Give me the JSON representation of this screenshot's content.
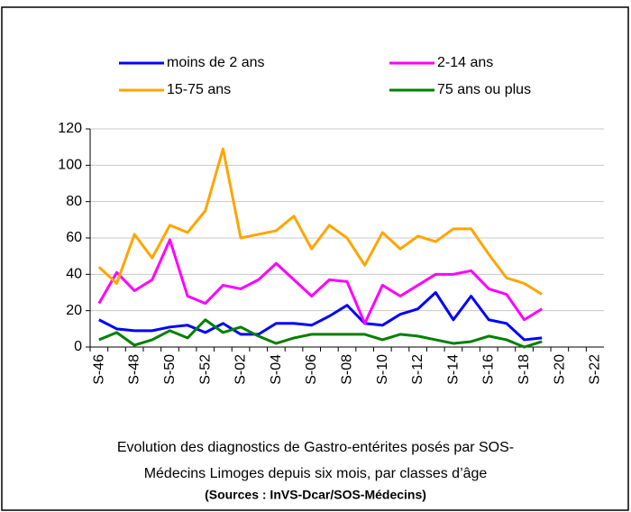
{
  "chart_data": {
    "type": "line",
    "categories": [
      "S-46",
      null,
      "S-48",
      null,
      "S-50",
      null,
      "S-52",
      null,
      "S-02",
      null,
      "S-04",
      null,
      "S-06",
      null,
      "S-08",
      null,
      "S-10",
      null,
      "S-12",
      null,
      "S-14",
      null,
      "S-16",
      null,
      "S-18",
      null,
      "S-20",
      null,
      "S-22"
    ],
    "series": [
      {
        "name": "moins de 2 ans",
        "color": "#0000ff",
        "values": [
          15,
          10,
          9,
          9,
          11,
          12,
          8,
          13,
          7,
          7,
          13,
          13,
          12,
          17,
          23,
          13,
          12,
          18,
          21,
          30,
          15,
          28,
          15,
          13,
          4,
          5,
          null,
          null,
          null
        ]
      },
      {
        "name": "2-14 ans",
        "color": "#ff00ff",
        "values": [
          24,
          41,
          31,
          37,
          59,
          28,
          24,
          34,
          32,
          37,
          46,
          37,
          28,
          37,
          36,
          13,
          34,
          28,
          34,
          40,
          40,
          42,
          32,
          29,
          15,
          21,
          null,
          null,
          null
        ]
      },
      {
        "name": "15-75 ans",
        "color": "#ffa500",
        "values": [
          44,
          35,
          62,
          49,
          67,
          63,
          75,
          109,
          60,
          62,
          64,
          72,
          54,
          67,
          60,
          45,
          63,
          54,
          61,
          58,
          65,
          65,
          51,
          38,
          35,
          29,
          null,
          null,
          null
        ]
      },
      {
        "name": "75 ans ou plus",
        "color": "#008000",
        "values": [
          4,
          8,
          1,
          4,
          9,
          5,
          15,
          8,
          11,
          6,
          2,
          5,
          7,
          7,
          7,
          7,
          4,
          7,
          6,
          4,
          2,
          3,
          6,
          4,
          0,
          3,
          null,
          null,
          null
        ]
      }
    ],
    "ylim": [
      0,
      120
    ],
    "yticks": [
      0,
      20,
      40,
      60,
      80,
      100,
      120
    ],
    "grid": true,
    "caption": [
      "Evolution des diagnostics de Gastro-entérites posés par SOS-",
      "Médecins Limoges depuis six mois, par classes d’âge"
    ],
    "source": "(Sources : InVS-Dcar/SOS-Médecins)"
  }
}
